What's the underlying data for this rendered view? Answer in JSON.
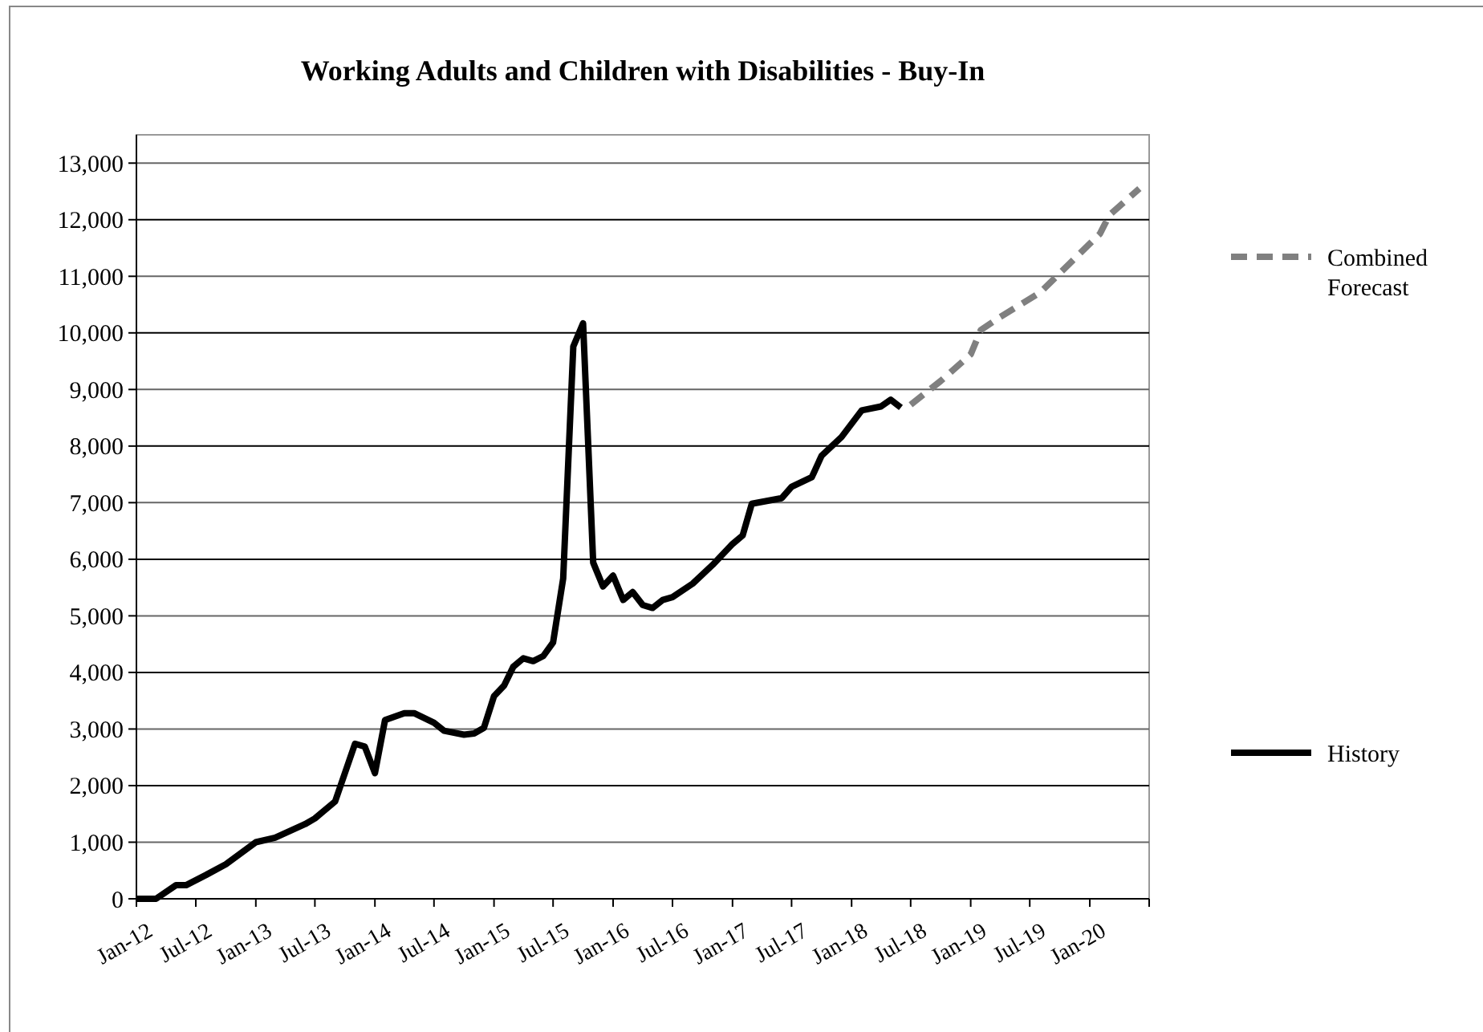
{
  "chart_data": {
    "type": "line",
    "title": "Working Adults and Children with Disabilities - Buy-In",
    "xlim": [
      "2012-01",
      "2020-07"
    ],
    "xticks": [
      {
        "value": "2012-01",
        "label": "Jan-12"
      },
      {
        "value": "2012-07",
        "label": "Jul-12"
      },
      {
        "value": "2013-01",
        "label": "Jan-13"
      },
      {
        "value": "2013-07",
        "label": "Jul-13"
      },
      {
        "value": "2014-01",
        "label": "Jan-14"
      },
      {
        "value": "2014-07",
        "label": "Jul-14"
      },
      {
        "value": "2015-01",
        "label": "Jan-15"
      },
      {
        "value": "2015-07",
        "label": "Jul-15"
      },
      {
        "value": "2016-01",
        "label": "Jan-16"
      },
      {
        "value": "2016-07",
        "label": "Jul-16"
      },
      {
        "value": "2017-01",
        "label": "Jan-17"
      },
      {
        "value": "2017-07",
        "label": "Jul-17"
      },
      {
        "value": "2018-01",
        "label": "Jan-18"
      },
      {
        "value": "2018-07",
        "label": "Jul-18"
      },
      {
        "value": "2019-01",
        "label": "Jan-19"
      },
      {
        "value": "2019-07",
        "label": "Jul-19"
      },
      {
        "value": "2020-01",
        "label": "Jan-20"
      },
      {
        "value": "2020-07",
        "label": null
      }
    ],
    "ylim": [
      0,
      13500
    ],
    "yticks": [
      {
        "value": 0,
        "label": "0"
      },
      {
        "value": 1000,
        "label": "1,000"
      },
      {
        "value": 2000,
        "label": "2,000"
      },
      {
        "value": 3000,
        "label": "3,000"
      },
      {
        "value": 4000,
        "label": "4,000"
      },
      {
        "value": 5000,
        "label": "5,000"
      },
      {
        "value": 6000,
        "label": "6,000"
      },
      {
        "value": 7000,
        "label": "7,000"
      },
      {
        "value": 8000,
        "label": "8,000"
      },
      {
        "value": 9000,
        "label": "9,000"
      },
      {
        "value": 10000,
        "label": "10,000"
      },
      {
        "value": 11000,
        "label": "11,000"
      },
      {
        "value": 12000,
        "label": "12,000"
      },
      {
        "value": 13000,
        "label": "13,000"
      }
    ],
    "grid": "y",
    "legend": "right",
    "marker": "none",
    "series": [
      {
        "name": "History",
        "color": "#000000",
        "line_style": "solid",
        "x": [
          "2012-01",
          "2012-03",
          "2012-05",
          "2012-06",
          "2012-08",
          "2012-10",
          "2013-01",
          "2013-03",
          "2013-06",
          "2013-07",
          "2013-09",
          "2013-11",
          "2013-12",
          "2014-01",
          "2014-02",
          "2014-04",
          "2014-05",
          "2014-07",
          "2014-08",
          "2014-10",
          "2014-11",
          "2014-12",
          "2015-01",
          "2015-02",
          "2015-03",
          "2015-04",
          "2015-05",
          "2015-06",
          "2015-07",
          "2015-08",
          "2015-09",
          "2015-10",
          "2015-11",
          "2015-12",
          "2016-01",
          "2016-02",
          "2016-03",
          "2016-04",
          "2016-05",
          "2016-06",
          "2016-07",
          "2016-09",
          "2016-11",
          "2017-01",
          "2017-02",
          "2017-03",
          "2017-06",
          "2017-07",
          "2017-09",
          "2017-10",
          "2017-12",
          "2018-02",
          "2018-04",
          "2018-05",
          "2018-06"
        ],
        "values": [
          0,
          0,
          240,
          240,
          420,
          610,
          1000,
          1080,
          1320,
          1420,
          1720,
          2740,
          2690,
          2220,
          3160,
          3280,
          3280,
          3110,
          2970,
          2900,
          2920,
          3020,
          3580,
          3770,
          4100,
          4250,
          4200,
          4290,
          4530,
          5660,
          9760,
          10170,
          5940,
          5520,
          5710,
          5280,
          5420,
          5190,
          5140,
          5280,
          5330,
          5570,
          5900,
          6270,
          6420,
          6980,
          7080,
          7280,
          7450,
          7830,
          8160,
          8630,
          8700,
          8820,
          8680
        ]
      },
      {
        "name": "Combined Forecast",
        "color": "#808080",
        "line_style": "dashed",
        "x": [
          "2018-07",
          "2018-10",
          "2019-01",
          "2019-02",
          "2019-04",
          "2019-08",
          "2019-11",
          "2020-02",
          "2020-03",
          "2020-06"
        ],
        "values": [
          8730,
          9150,
          9620,
          10050,
          10280,
          10710,
          11230,
          11750,
          12080,
          12550
        ]
      }
    ]
  }
}
